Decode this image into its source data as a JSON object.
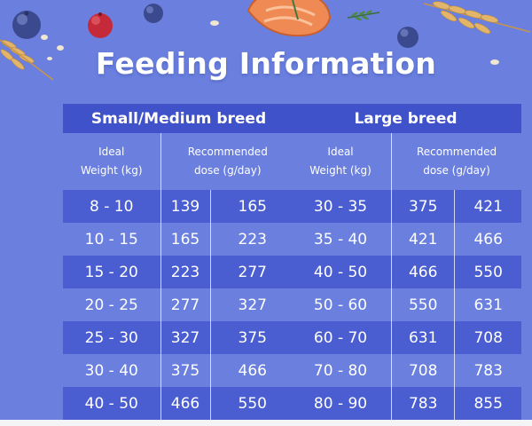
{
  "title": "Feeding Information",
  "colors": {
    "background": "#6a7fde",
    "header": "#3f52c9",
    "row_dark": "#4a5ed1",
    "row_light": "#6a7fde",
    "text": "#ffffff"
  },
  "decorations": [
    "blueberry-icon",
    "cranberry-icon",
    "salmon-steak-icon",
    "wheat-stalk-icon",
    "rosemary-icon",
    "oat-flake-icon"
  ],
  "tables": [
    {
      "heading": "Small/Medium breed",
      "col_weight": "Ideal\nWeight (kg)",
      "col_dose": "Recommended\ndose (g/day)",
      "rows": [
        {
          "weight": "8 - 10",
          "low": "139",
          "high": "165"
        },
        {
          "weight": "10 - 15",
          "low": "165",
          "high": "223"
        },
        {
          "weight": "15 - 20",
          "low": "223",
          "high": "277"
        },
        {
          "weight": "20 - 25",
          "low": "277",
          "high": "327"
        },
        {
          "weight": "25 - 30",
          "low": "327",
          "high": "375"
        },
        {
          "weight": "30 - 40",
          "low": "375",
          "high": "466"
        },
        {
          "weight": "40 - 50",
          "low": "466",
          "high": "550"
        }
      ]
    },
    {
      "heading": "Large breed",
      "col_weight": "Ideal\nWeight (kg)",
      "col_dose": "Recommended\ndose (g/day)",
      "rows": [
        {
          "weight": "30 - 35",
          "low": "375",
          "high": "421"
        },
        {
          "weight": "35 - 40",
          "low": "421",
          "high": "466"
        },
        {
          "weight": "40 - 50",
          "low": "466",
          "high": "550"
        },
        {
          "weight": "50 - 60",
          "low": "550",
          "high": "631"
        },
        {
          "weight": "60 - 70",
          "low": "631",
          "high": "708"
        },
        {
          "weight": "70 - 80",
          "low": "708",
          "high": "783"
        },
        {
          "weight": "80 - 90",
          "low": "783",
          "high": "855"
        }
      ]
    }
  ]
}
